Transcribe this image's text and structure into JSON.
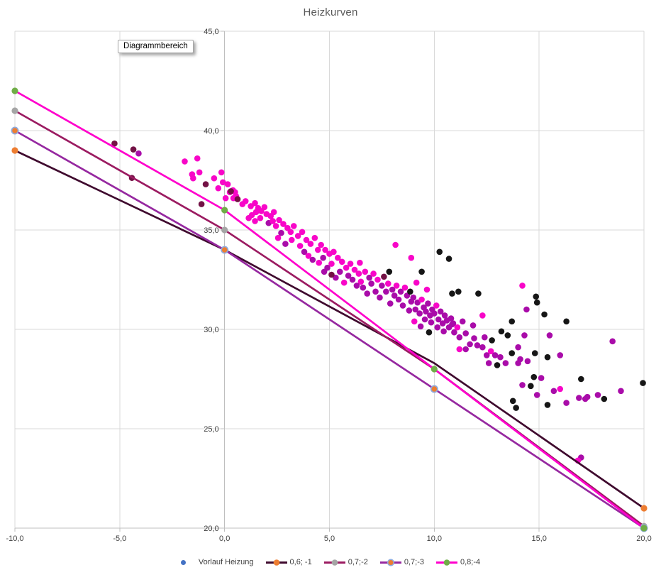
{
  "title": "Heizkurven",
  "tooltip": "Diagrammbereich",
  "chart_data": {
    "type": "scatter",
    "title": "Heizkurven",
    "grid": true,
    "legend_position": "bottom",
    "x_axis": {
      "range": [
        -10,
        20
      ],
      "tick_values": [
        -10,
        -5,
        0,
        5,
        10,
        15,
        20
      ],
      "tick_labels": [
        "-10,0",
        "-5,0",
        "0,0",
        "5,0",
        "10,0",
        "15,0",
        "20,0"
      ]
    },
    "y_axis": {
      "range": [
        20,
        45
      ],
      "tick_values": [
        45,
        40,
        35,
        30,
        25,
        20
      ],
      "tick_labels": [
        "45,0",
        "40,0",
        "35,0",
        "30,0",
        "25,0",
        "20,0"
      ]
    },
    "scatter_series": {
      "name": "Vorlauf Heizung",
      "legend_color": "#4472C4",
      "point_colors": {
        "m": "#F806C8",
        "p": "#A90CA9",
        "r": "#731245",
        "k": "#161616"
      },
      "points": [
        [
          -5.25,
          39.35,
          "r"
        ],
        [
          -4.35,
          39.05,
          "r"
        ],
        [
          -4.1,
          38.85,
          "p"
        ],
        [
          -4.42,
          37.62,
          "r"
        ],
        [
          -1.9,
          38.45,
          "m"
        ],
        [
          -1.3,
          38.6,
          "m"
        ],
        [
          -1.2,
          37.9,
          "m"
        ],
        [
          -1.55,
          37.8,
          "m"
        ],
        [
          -1.5,
          37.6,
          "m"
        ],
        [
          -0.9,
          37.3,
          "r"
        ],
        [
          -0.5,
          37.6,
          "m"
        ],
        [
          -0.15,
          37.9,
          "m"
        ],
        [
          -0.08,
          37.4,
          "m"
        ],
        [
          0.15,
          37.3,
          "m"
        ],
        [
          0.25,
          36.9,
          "m"
        ],
        [
          0.4,
          37.0,
          "m"
        ],
        [
          0.5,
          36.9,
          "m"
        ],
        [
          0.55,
          36.7,
          "m"
        ],
        [
          0.42,
          36.6,
          "m"
        ],
        [
          -1.1,
          36.3,
          "r"
        ],
        [
          0.3,
          36.95,
          "r"
        ],
        [
          0.62,
          36.55,
          "r"
        ],
        [
          -0.3,
          37.1,
          "m"
        ],
        [
          0.05,
          36.6,
          "m"
        ],
        [
          0.85,
          36.3,
          "m"
        ],
        [
          1.0,
          36.45,
          "m"
        ],
        [
          1.25,
          36.2,
          "m"
        ],
        [
          1.45,
          36.35,
          "m"
        ],
        [
          1.6,
          36.1,
          "m"
        ],
        [
          1.5,
          35.9,
          "m"
        ],
        [
          1.3,
          35.75,
          "m"
        ],
        [
          1.75,
          35.95,
          "m"
        ],
        [
          1.9,
          36.15,
          "m"
        ],
        [
          2.0,
          35.8,
          "m"
        ],
        [
          1.7,
          35.6,
          "m"
        ],
        [
          1.45,
          35.45,
          "m"
        ],
        [
          2.2,
          35.7,
          "m"
        ],
        [
          2.35,
          35.9,
          "m"
        ],
        [
          2.1,
          35.35,
          "p"
        ],
        [
          2.45,
          35.2,
          "m"
        ],
        [
          1.15,
          35.6,
          "m"
        ],
        [
          2.3,
          35.45,
          "m"
        ],
        [
          2.6,
          35.5,
          "m"
        ],
        [
          2.8,
          35.3,
          "m"
        ],
        [
          3.0,
          35.1,
          "m"
        ],
        [
          2.7,
          34.85,
          "p"
        ],
        [
          3.15,
          34.9,
          "m"
        ],
        [
          3.3,
          35.2,
          "m"
        ],
        [
          3.5,
          34.7,
          "m"
        ],
        [
          3.2,
          34.5,
          "m"
        ],
        [
          2.9,
          34.3,
          "p"
        ],
        [
          3.7,
          34.9,
          "m"
        ],
        [
          3.9,
          34.5,
          "m"
        ],
        [
          3.6,
          34.2,
          "m"
        ],
        [
          4.1,
          34.3,
          "m"
        ],
        [
          4.3,
          34.6,
          "m"
        ],
        [
          3.8,
          33.9,
          "p"
        ],
        [
          4.0,
          33.7,
          "m"
        ],
        [
          4.45,
          34.0,
          "m"
        ],
        [
          4.2,
          33.5,
          "p"
        ],
        [
          2.55,
          34.6,
          "m"
        ],
        [
          4.5,
          33.35,
          "m"
        ],
        [
          4.6,
          34.25,
          "m"
        ],
        [
          4.8,
          34.0,
          "m"
        ],
        [
          5.0,
          33.8,
          "m"
        ],
        [
          4.7,
          33.6,
          "p"
        ],
        [
          5.2,
          33.9,
          "m"
        ],
        [
          5.4,
          33.6,
          "m"
        ],
        [
          5.1,
          33.3,
          "m"
        ],
        [
          4.9,
          33.1,
          "p"
        ],
        [
          5.6,
          33.4,
          "m"
        ],
        [
          5.8,
          33.1,
          "m"
        ],
        [
          5.5,
          32.9,
          "p"
        ],
        [
          6.0,
          33.3,
          "m"
        ],
        [
          6.2,
          33.0,
          "m"
        ],
        [
          5.9,
          32.7,
          "p"
        ],
        [
          6.4,
          32.8,
          "m"
        ],
        [
          6.1,
          32.5,
          "p"
        ],
        [
          5.3,
          32.6,
          "p"
        ],
        [
          6.5,
          32.4,
          "m"
        ],
        [
          4.75,
          32.9,
          "p"
        ],
        [
          6.3,
          32.2,
          "p"
        ],
        [
          5.7,
          32.35,
          "m"
        ],
        [
          6.45,
          33.35,
          "m"
        ],
        [
          5.1,
          32.75,
          "r"
        ],
        [
          6.7,
          32.9,
          "m"
        ],
        [
          6.9,
          32.6,
          "p"
        ],
        [
          7.1,
          32.8,
          "m"
        ],
        [
          7.0,
          32.3,
          "p"
        ],
        [
          7.3,
          32.5,
          "m"
        ],
        [
          7.5,
          32.2,
          "p"
        ],
        [
          7.2,
          31.9,
          "p"
        ],
        [
          7.6,
          32.65,
          "r"
        ],
        [
          7.85,
          32.9,
          "k"
        ],
        [
          7.8,
          32.3,
          "m"
        ],
        [
          7.7,
          31.9,
          "p"
        ],
        [
          8.0,
          32.0,
          "p"
        ],
        [
          8.2,
          32.2,
          "m"
        ],
        [
          8.1,
          31.7,
          "p"
        ],
        [
          8.4,
          31.9,
          "p"
        ],
        [
          8.3,
          31.5,
          "p"
        ],
        [
          8.6,
          32.1,
          "m"
        ],
        [
          8.7,
          31.7,
          "p"
        ],
        [
          8.9,
          31.4,
          "p"
        ],
        [
          8.5,
          31.2,
          "p"
        ],
        [
          8.8,
          30.95,
          "p"
        ],
        [
          6.6,
          32.1,
          "p"
        ],
        [
          6.8,
          31.8,
          "p"
        ],
        [
          7.4,
          31.6,
          "p"
        ],
        [
          7.9,
          31.3,
          "p"
        ],
        [
          8.15,
          34.25,
          "m"
        ],
        [
          8.9,
          33.6,
          "m"
        ],
        [
          9.4,
          32.9,
          "k"
        ],
        [
          8.85,
          31.9,
          "k"
        ],
        [
          9.0,
          31.6,
          "p"
        ],
        [
          9.2,
          31.35,
          "p"
        ],
        [
          9.1,
          31.0,
          "p"
        ],
        [
          9.4,
          31.5,
          "m"
        ],
        [
          9.5,
          31.1,
          "p"
        ],
        [
          9.3,
          30.8,
          "p"
        ],
        [
          9.6,
          30.9,
          "p"
        ],
        [
          9.7,
          31.3,
          "p"
        ],
        [
          9.8,
          30.7,
          "p"
        ],
        [
          9.9,
          31.0,
          "p"
        ],
        [
          10.0,
          30.8,
          "p"
        ],
        [
          10.1,
          31.2,
          "m"
        ],
        [
          10.2,
          30.5,
          "p"
        ],
        [
          10.3,
          30.9,
          "p"
        ],
        [
          10.4,
          30.3,
          "p"
        ],
        [
          10.5,
          30.7,
          "p"
        ],
        [
          10.6,
          30.45,
          "p"
        ],
        [
          10.7,
          30.1,
          "p"
        ],
        [
          10.45,
          29.9,
          "p"
        ],
        [
          10.15,
          30.1,
          "p"
        ],
        [
          9.55,
          30.5,
          "p"
        ],
        [
          9.85,
          30.35,
          "p"
        ],
        [
          10.8,
          30.55,
          "p"
        ],
        [
          9.05,
          30.4,
          "m"
        ],
        [
          9.35,
          30.15,
          "p"
        ],
        [
          10.9,
          30.3,
          "p"
        ],
        [
          9.65,
          32.0,
          "m"
        ],
        [
          9.15,
          32.35,
          "m"
        ],
        [
          9.75,
          29.85,
          "k"
        ],
        [
          10.25,
          33.9,
          "k"
        ],
        [
          10.7,
          33.55,
          "k"
        ],
        [
          11.15,
          31.9,
          "k"
        ],
        [
          10.85,
          31.8,
          "k"
        ],
        [
          12.1,
          31.8,
          "k"
        ],
        [
          10.85,
          30.25,
          "p"
        ],
        [
          10.95,
          29.85,
          "p"
        ],
        [
          11.1,
          30.1,
          "m"
        ],
        [
          11.2,
          29.6,
          "p"
        ],
        [
          11.5,
          29.8,
          "p"
        ],
        [
          11.7,
          29.25,
          "p"
        ],
        [
          11.9,
          29.55,
          "p"
        ],
        [
          12.05,
          29.2,
          "p"
        ],
        [
          12.3,
          29.1,
          "p"
        ],
        [
          12.5,
          28.7,
          "p"
        ],
        [
          12.7,
          28.9,
          "m"
        ],
        [
          12.9,
          28.7,
          "p"
        ],
        [
          13.15,
          28.6,
          "p"
        ],
        [
          12.4,
          29.6,
          "p"
        ],
        [
          12.75,
          29.45,
          "k"
        ],
        [
          11.5,
          29.0,
          "p"
        ],
        [
          11.2,
          29.0,
          "m"
        ],
        [
          12.3,
          30.7,
          "m"
        ],
        [
          11.35,
          30.4,
          "p"
        ],
        [
          11.85,
          30.2,
          "p"
        ],
        [
          12.6,
          28.3,
          "p"
        ],
        [
          13.0,
          28.2,
          "k"
        ],
        [
          14.2,
          32.2,
          "m"
        ],
        [
          14.4,
          31.0,
          "p"
        ],
        [
          14.85,
          31.65,
          "k"
        ],
        [
          14.9,
          31.35,
          "k"
        ],
        [
          15.25,
          30.75,
          "k"
        ],
        [
          16.3,
          30.4,
          "k"
        ],
        [
          13.7,
          30.4,
          "k"
        ],
        [
          13.2,
          29.9,
          "k"
        ],
        [
          13.5,
          29.7,
          "k"
        ],
        [
          14.3,
          29.7,
          "p"
        ],
        [
          15.5,
          29.7,
          "p"
        ],
        [
          14.8,
          28.8,
          "k"
        ],
        [
          15.4,
          28.6,
          "k"
        ],
        [
          16.0,
          28.7,
          "p"
        ],
        [
          13.7,
          28.8,
          "k"
        ],
        [
          14.0,
          29.1,
          "p"
        ],
        [
          14.1,
          28.5,
          "p"
        ],
        [
          13.4,
          28.3,
          "p"
        ],
        [
          14.0,
          28.3,
          "p"
        ],
        [
          14.45,
          28.4,
          "p"
        ],
        [
          14.75,
          27.6,
          "k"
        ],
        [
          15.1,
          27.55,
          "p"
        ],
        [
          14.2,
          27.2,
          "p"
        ],
        [
          14.6,
          27.15,
          "k"
        ],
        [
          14.9,
          26.7,
          "p"
        ],
        [
          15.7,
          26.9,
          "p"
        ],
        [
          16.0,
          27.0,
          "m"
        ],
        [
          15.4,
          26.2,
          "k"
        ],
        [
          13.75,
          26.4,
          "k"
        ],
        [
          13.9,
          26.05,
          "k"
        ],
        [
          16.3,
          26.3,
          "p"
        ],
        [
          17.0,
          27.5,
          "k"
        ],
        [
          17.8,
          26.7,
          "p"
        ],
        [
          18.1,
          26.5,
          "k"
        ],
        [
          17.3,
          26.6,
          "p"
        ],
        [
          16.9,
          26.55,
          "p"
        ],
        [
          17.2,
          26.5,
          "p"
        ],
        [
          18.9,
          26.9,
          "p"
        ],
        [
          19.95,
          27.3,
          "k"
        ],
        [
          18.5,
          29.4,
          "p"
        ],
        [
          17.0,
          23.55,
          "p"
        ],
        [
          16.85,
          23.4,
          "m"
        ]
      ]
    },
    "line_series": [
      {
        "name": "0,6; -1",
        "line_color": "#3F0A2E",
        "marker_color": "#ED7D31",
        "marker_stroke": "none",
        "points": [
          [
            -10,
            39
          ],
          [
            0,
            34
          ],
          [
            10,
            28.3
          ],
          [
            20,
            21
          ]
        ],
        "markers": [
          [
            -10,
            39
          ],
          [
            0,
            34
          ],
          [
            20,
            21
          ]
        ]
      },
      {
        "name": "0,7;-2",
        "line_color": "#9B1B61",
        "marker_color": "#A5A5A5",
        "marker_stroke": "none",
        "points": [
          [
            -10,
            41
          ],
          [
            0,
            35
          ],
          [
            10,
            28.0
          ],
          [
            20,
            20.1
          ]
        ],
        "markers": [
          [
            -10,
            41
          ],
          [
            0,
            35
          ],
          [
            20,
            20.1
          ]
        ]
      },
      {
        "name": "0,7;-3",
        "line_color": "#9628A0",
        "marker_color": "#ED7D31",
        "marker_stroke": "#8FAADC",
        "points": [
          [
            -10,
            40
          ],
          [
            0,
            34
          ],
          [
            10,
            27
          ],
          [
            20,
            20
          ]
        ],
        "markers": [
          [
            -10,
            40
          ],
          [
            0,
            34
          ],
          [
            10,
            27
          ],
          [
            20,
            20
          ]
        ]
      },
      {
        "name": "0,8;-4",
        "line_color": "#FF00CC",
        "marker_color": "#70AD47",
        "marker_stroke": "none",
        "points": [
          [
            -10,
            42
          ],
          [
            0,
            36
          ],
          [
            10,
            28
          ],
          [
            20,
            20
          ]
        ],
        "markers": [
          [
            -10,
            42
          ],
          [
            0,
            36
          ],
          [
            10,
            28
          ],
          [
            20,
            20
          ]
        ]
      }
    ]
  }
}
